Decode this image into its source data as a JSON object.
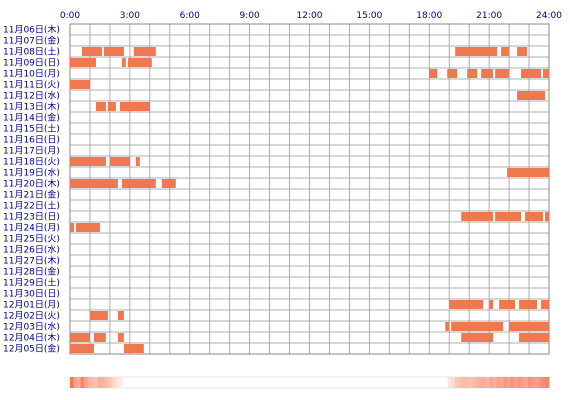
{
  "chart_data": {
    "type": "heatmap",
    "x_ticks": [
      "0:00",
      "3:00",
      "6:00",
      "9:00",
      "12:00",
      "15:00",
      "18:00",
      "21:00",
      "24:00"
    ],
    "x_range_hours": [
      0,
      24
    ],
    "rows": [
      {
        "label": "11月06日(木)",
        "intervals": []
      },
      {
        "label": "11月07日(金)",
        "intervals": []
      },
      {
        "label": "11月08日(土)",
        "intervals": [
          [
            0.6,
            1.6
          ],
          [
            1.7,
            2.7
          ],
          [
            3.2,
            4.3
          ],
          [
            19.3,
            21.4
          ],
          [
            21.6,
            22.0
          ],
          [
            22.4,
            22.9
          ]
        ]
      },
      {
        "label": "11月09日(日)",
        "intervals": [
          [
            0.0,
            1.3
          ],
          [
            2.6,
            2.8
          ],
          [
            2.9,
            4.1
          ]
        ]
      },
      {
        "label": "11月10日(月)",
        "intervals": [
          [
            18.0,
            18.4
          ],
          [
            18.9,
            19.4
          ],
          [
            19.9,
            20.4
          ],
          [
            20.6,
            21.2
          ],
          [
            21.3,
            22.0
          ],
          [
            22.6,
            23.6
          ],
          [
            23.7,
            24.0
          ]
        ]
      },
      {
        "label": "11月11日(火)",
        "intervals": [
          [
            0.0,
            1.0
          ]
        ]
      },
      {
        "label": "11月12日(水)",
        "intervals": [
          [
            22.4,
            23.8
          ]
        ]
      },
      {
        "label": "11月13日(木)",
        "intervals": [
          [
            1.3,
            1.8
          ],
          [
            1.9,
            2.3
          ],
          [
            2.5,
            4.0
          ]
        ]
      },
      {
        "label": "11月14日(金)",
        "intervals": []
      },
      {
        "label": "11月15日(土)",
        "intervals": []
      },
      {
        "label": "11月16日(日)",
        "intervals": []
      },
      {
        "label": "11月17日(月)",
        "intervals": []
      },
      {
        "label": "11月18日(火)",
        "intervals": [
          [
            0.0,
            1.8
          ],
          [
            2.0,
            3.0
          ],
          [
            3.3,
            3.5
          ]
        ]
      },
      {
        "label": "11月19日(水)",
        "intervals": [
          [
            21.9,
            24.0
          ]
        ]
      },
      {
        "label": "11月20日(木)",
        "intervals": [
          [
            0.0,
            2.4
          ],
          [
            2.6,
            4.3
          ],
          [
            4.6,
            5.3
          ]
        ]
      },
      {
        "label": "11月21日(金)",
        "intervals": []
      },
      {
        "label": "11月22日(土)",
        "intervals": []
      },
      {
        "label": "11月23日(日)",
        "intervals": [
          [
            19.6,
            21.2
          ],
          [
            21.3,
            22.6
          ],
          [
            22.8,
            23.7
          ],
          [
            23.8,
            24.0
          ]
        ]
      },
      {
        "label": "11月24日(月)",
        "intervals": [
          [
            0.0,
            0.2
          ],
          [
            0.3,
            1.5
          ]
        ]
      },
      {
        "label": "11月25日(火)",
        "intervals": []
      },
      {
        "label": "11月26日(水)",
        "intervals": []
      },
      {
        "label": "11月27日(木)",
        "intervals": []
      },
      {
        "label": "11月28日(金)",
        "intervals": []
      },
      {
        "label": "11月29日(土)",
        "intervals": []
      },
      {
        "label": "11月30日(日)",
        "intervals": []
      },
      {
        "label": "12月01日(月)",
        "intervals": [
          [
            19.0,
            20.7
          ],
          [
            21.0,
            21.2
          ],
          [
            21.5,
            22.3
          ],
          [
            22.5,
            23.4
          ],
          [
            23.6,
            24.0
          ]
        ]
      },
      {
        "label": "12月02日(火)",
        "intervals": [
          [
            1.0,
            1.9
          ],
          [
            2.4,
            2.7
          ]
        ]
      },
      {
        "label": "12月03日(水)",
        "intervals": [
          [
            18.8,
            19.0
          ],
          [
            19.1,
            21.7
          ],
          [
            22.0,
            24.0
          ]
        ]
      },
      {
        "label": "12月04日(木)",
        "intervals": [
          [
            0.0,
            1.0
          ],
          [
            1.2,
            1.8
          ],
          [
            2.4,
            2.7
          ],
          [
            19.6,
            21.2
          ],
          [
            22.5,
            24.0
          ]
        ]
      },
      {
        "label": "12月05日(金)",
        "intervals": [
          [
            0.0,
            1.2
          ],
          [
            2.7,
            3.7
          ]
        ]
      }
    ],
    "summary_density": [
      0.9,
      0.6,
      0.5,
      0.8,
      0.6,
      0.45,
      0.4,
      0.35,
      0.5,
      0.45,
      0.4,
      0.3,
      0.2,
      0.1,
      0.05,
      0,
      0,
      0,
      0,
      0,
      0,
      0,
      0,
      0,
      0,
      0,
      0,
      0,
      0,
      0,
      0,
      0,
      0,
      0,
      0,
      0,
      0,
      0,
      0,
      0,
      0,
      0,
      0,
      0,
      0,
      0,
      0,
      0,
      0,
      0,
      0,
      0,
      0,
      0,
      0,
      0,
      0,
      0,
      0,
      0,
      0,
      0,
      0,
      0,
      0,
      0,
      0,
      0,
      0,
      0,
      0,
      0,
      0,
      0,
      0,
      0,
      0,
      0,
      0,
      0,
      0,
      0,
      0,
      0,
      0,
      0,
      0,
      0,
      0,
      0,
      0,
      0,
      0,
      0,
      0,
      0,
      0,
      0,
      0,
      0,
      0,
      0,
      0,
      0,
      0,
      0,
      0,
      0,
      0.1,
      0.15,
      0.3,
      0.35,
      0.4,
      0.4,
      0.35,
      0.4,
      0.45,
      0.5,
      0.5,
      0.45,
      0.55,
      0.5,
      0.6,
      0.55,
      0.65,
      0.6,
      0.7,
      0.6,
      0.7,
      0.6,
      0.55,
      0.7,
      0.65,
      0.6,
      0.7,
      0.75,
      0.8
    ]
  },
  "colors": {
    "bar": "#f07850",
    "grid": "#999999",
    "frame": "#888888",
    "text": "#000088",
    "density_base": "#fff2ee",
    "density_peak": "#f46a48"
  }
}
